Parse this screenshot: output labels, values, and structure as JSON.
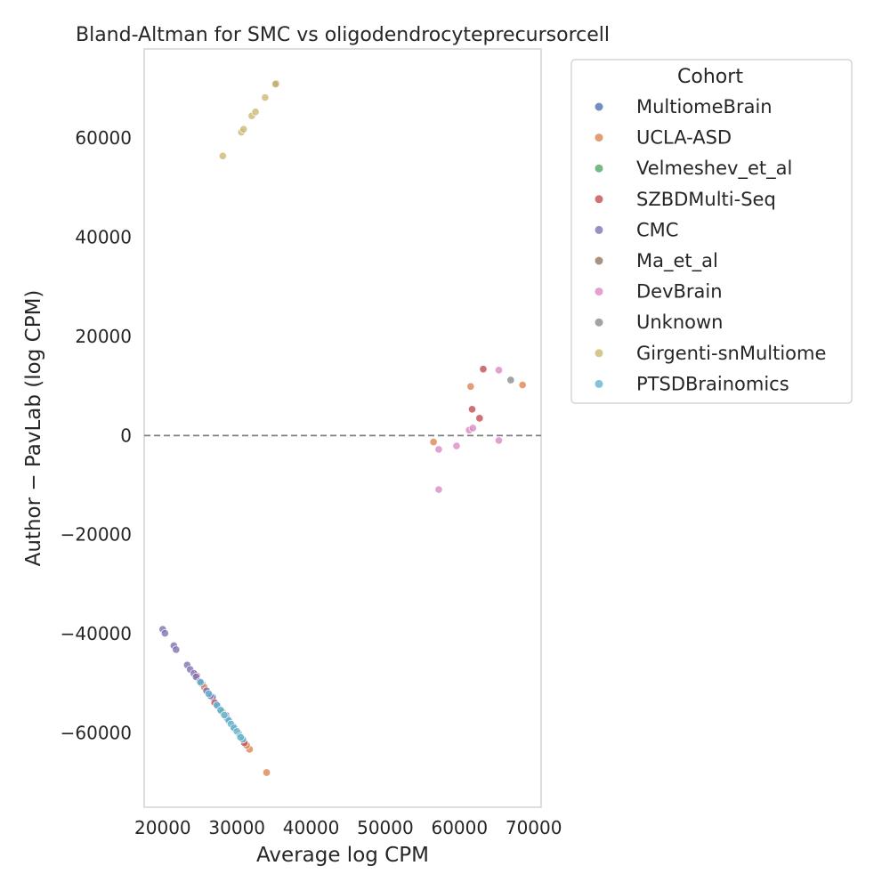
{
  "chart_data": {
    "type": "scatter",
    "title": "Bland-Altman for SMC vs oligodendrocyteprecursorcell",
    "xlabel": "Average log CPM",
    "ylabel": "Author − PavLab (log CPM)",
    "xlim": [
      17500,
      71000
    ],
    "ylim": [
      -75000,
      78000
    ],
    "xticks": [
      20000,
      30000,
      40000,
      50000,
      60000,
      70000
    ],
    "yticks": [
      -60000,
      -40000,
      -20000,
      0,
      20000,
      40000,
      60000
    ],
    "xtick_labels": [
      "20000",
      "30000",
      "40000",
      "50000",
      "60000",
      "70000"
    ],
    "ytick_labels": [
      "−60000",
      "−40000",
      "−20000",
      "0",
      "20000",
      "40000",
      "60000"
    ],
    "reference_line": {
      "y": 0,
      "style": "dashed",
      "color": "#808080"
    },
    "grid": false,
    "legend": {
      "title": "Cohort",
      "placement": "outside-right-top"
    },
    "series": [
      {
        "name": "MultiomeBrain",
        "color": "#4c72b0",
        "points": [
          [
            25300,
            -50100
          ],
          [
            26700,
            -52800
          ],
          [
            28500,
            -56400
          ]
        ]
      },
      {
        "name": "UCLA-ASD",
        "color": "#dd8452",
        "points": [
          [
            56500,
            -1300
          ],
          [
            61500,
            9900
          ],
          [
            68500,
            10200
          ],
          [
            34000,
            -68000
          ],
          [
            31700,
            -63300
          ],
          [
            31300,
            -62500
          ],
          [
            26000,
            -51700
          ],
          [
            28100,
            -55800
          ],
          [
            25600,
            -50800
          ]
        ]
      },
      {
        "name": "Velmeshev_et_al",
        "color": "#55a868",
        "points": [
          [
            27900,
            -55600
          ]
        ]
      },
      {
        "name": "SZBDMulti-Seq",
        "color": "#c44e52",
        "points": [
          [
            63200,
            13400
          ],
          [
            61700,
            5300
          ],
          [
            62700,
            3500
          ],
          [
            31000,
            -62000
          ],
          [
            27000,
            -53900
          ],
          [
            24600,
            -48500
          ]
        ]
      },
      {
        "name": "CMC",
        "color": "#8172b3",
        "points": [
          [
            20000,
            -39100
          ],
          [
            20300,
            -39900
          ],
          [
            21500,
            -42400
          ],
          [
            21800,
            -43200
          ],
          [
            23300,
            -46300
          ],
          [
            23700,
            -47200
          ],
          [
            24200,
            -48000
          ],
          [
            24500,
            -48700
          ],
          [
            25000,
            -49600
          ],
          [
            25900,
            -51500
          ],
          [
            26400,
            -52500
          ],
          [
            27400,
            -54600
          ],
          [
            28700,
            -57100
          ],
          [
            29500,
            -58700
          ],
          [
            30300,
            -60200
          ]
        ]
      },
      {
        "name": "Ma_et_al",
        "color": "#937860",
        "points": [
          [
            35300,
            71000
          ]
        ]
      },
      {
        "name": "DevBrain",
        "color": "#da8bc3",
        "points": [
          [
            65300,
            13200
          ],
          [
            57200,
            -2800
          ],
          [
            57200,
            -10900
          ],
          [
            59600,
            -2100
          ],
          [
            61300,
            1100
          ],
          [
            61800,
            1500
          ],
          [
            65300,
            -1000
          ]
        ]
      },
      {
        "name": "Unknown",
        "color": "#8c8c8c",
        "points": [
          [
            66900,
            11200
          ]
        ]
      },
      {
        "name": "Girgenti-snMultiome",
        "color": "#ccb974",
        "points": [
          [
            28100,
            56400
          ],
          [
            30600,
            61200
          ],
          [
            30900,
            61800
          ],
          [
            32000,
            64500
          ],
          [
            32500,
            65300
          ],
          [
            33800,
            68200
          ],
          [
            35200,
            70900
          ]
        ]
      },
      {
        "name": "PTSDBrainomics",
        "color": "#64b5cd",
        "points": [
          [
            25100,
            -49800
          ],
          [
            26200,
            -52100
          ],
          [
            27300,
            -54400
          ],
          [
            27800,
            -55400
          ],
          [
            28300,
            -56400
          ],
          [
            28900,
            -57500
          ],
          [
            29200,
            -58200
          ],
          [
            29600,
            -59000
          ],
          [
            30000,
            -59700
          ],
          [
            30400,
            -60600
          ],
          [
            30800,
            -61300
          ],
          [
            30500,
            -60900
          ]
        ]
      }
    ]
  }
}
